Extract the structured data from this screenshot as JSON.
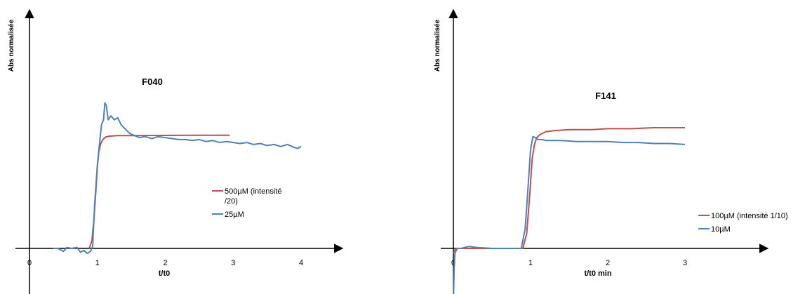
{
  "chart_data": [
    {
      "type": "line",
      "title": "F040",
      "xlabel": "t/t0",
      "ylabel": "Abs normalisée",
      "xlim": [
        -0.1,
        4.45
      ],
      "ylim": [
        -0.35,
        1.35
      ],
      "xticks": [
        "0",
        "1",
        "2",
        "3",
        "4"
      ],
      "grid": false,
      "legend_position": "right",
      "series": [
        {
          "name": "500µM (intensité /20)",
          "legend_lines": [
            "500µM (intensité",
            "/20)"
          ],
          "color": "#c0504d",
          "x": [
            0.88,
            0.92,
            0.95,
            0.98,
            1.0,
            1.02,
            1.05,
            1.08,
            1.12,
            1.18,
            1.3,
            1.5,
            2.0,
            2.5,
            2.95
          ],
          "y": [
            0.0,
            0.08,
            0.3,
            0.6,
            0.83,
            0.97,
            1.06,
            1.1,
            1.125,
            1.135,
            1.14,
            1.14,
            1.142,
            1.143,
            1.143
          ]
        },
        {
          "name": "25µM",
          "legend_lines": [
            "25µM"
          ],
          "color": "#4f81bd",
          "x": [
            0.35,
            0.42,
            0.5,
            0.55,
            0.62,
            0.7,
            0.75,
            0.8,
            0.85,
            0.9,
            0.93,
            0.96,
            1.0,
            1.03,
            1.06,
            1.09,
            1.11,
            1.13,
            1.16,
            1.2,
            1.25,
            1.3,
            1.35,
            1.42,
            1.48,
            1.55,
            1.62,
            1.7,
            1.8,
            1.9,
            2.0,
            2.1,
            2.2,
            2.3,
            2.4,
            2.5,
            2.6,
            2.7,
            2.8,
            2.9,
            3.0,
            3.1,
            3.2,
            3.3,
            3.4,
            3.5,
            3.6,
            3.7,
            3.8,
            3.9,
            3.95,
            4.0
          ],
          "y": [
            0.0,
            0.0,
            -0.03,
            0.01,
            0.0,
            0.01,
            -0.04,
            -0.02,
            -0.05,
            -0.03,
            0.02,
            0.45,
            0.85,
            1.05,
            1.25,
            1.3,
            1.47,
            1.45,
            1.3,
            1.34,
            1.3,
            1.32,
            1.25,
            1.2,
            1.16,
            1.14,
            1.12,
            1.13,
            1.11,
            1.13,
            1.12,
            1.11,
            1.1,
            1.1,
            1.09,
            1.1,
            1.08,
            1.09,
            1.07,
            1.08,
            1.07,
            1.06,
            1.07,
            1.05,
            1.06,
            1.04,
            1.05,
            1.03,
            1.05,
            1.02,
            1.01,
            1.03
          ]
        }
      ]
    },
    {
      "type": "line",
      "title": "F141",
      "xlabel": "t/t0 min",
      "ylabel": "Abs normalisée",
      "xlim": [
        -0.05,
        3.95
      ],
      "ylim": [
        -0.6,
        1.85
      ],
      "xticks": [
        "0",
        "1",
        "2",
        "3"
      ],
      "grid": false,
      "legend_position": "right",
      "series": [
        {
          "name": "100µM (intensité 1/10)",
          "legend_lines": [
            "100µM (intensité 1/10)"
          ],
          "color": "#c0504d",
          "x": [
            0.0,
            0.03,
            0.1,
            0.5,
            0.9,
            0.95,
            0.99,
            1.02,
            1.05,
            1.08,
            1.12,
            1.2,
            1.3,
            1.5,
            1.8,
            2.0,
            2.3,
            2.6,
            3.0
          ],
          "y": [
            -0.05,
            0.0,
            0.0,
            0.0,
            0.0,
            0.15,
            0.55,
            0.9,
            1.05,
            1.12,
            1.15,
            1.18,
            1.19,
            1.2,
            1.2,
            1.21,
            1.21,
            1.22,
            1.22
          ]
        },
        {
          "name": "10µM",
          "legend_lines": [
            "10µM"
          ],
          "color": "#4f81bd",
          "x": [
            0.0,
            0.01,
            0.02,
            0.05,
            0.1,
            0.2,
            0.3,
            0.5,
            0.7,
            0.88,
            0.93,
            0.97,
            1.0,
            1.03,
            1.06,
            1.1,
            1.15,
            1.2,
            1.4,
            1.6,
            1.8,
            2.0,
            2.2,
            2.4,
            2.6,
            2.8,
            3.0
          ],
          "y": [
            -0.55,
            -0.2,
            -0.05,
            0.0,
            0.0,
            0.02,
            0.01,
            0.0,
            0.0,
            0.0,
            0.2,
            0.65,
            1.0,
            1.13,
            1.12,
            1.1,
            1.1,
            1.09,
            1.09,
            1.08,
            1.08,
            1.08,
            1.07,
            1.07,
            1.06,
            1.06,
            1.05
          ]
        }
      ]
    }
  ]
}
